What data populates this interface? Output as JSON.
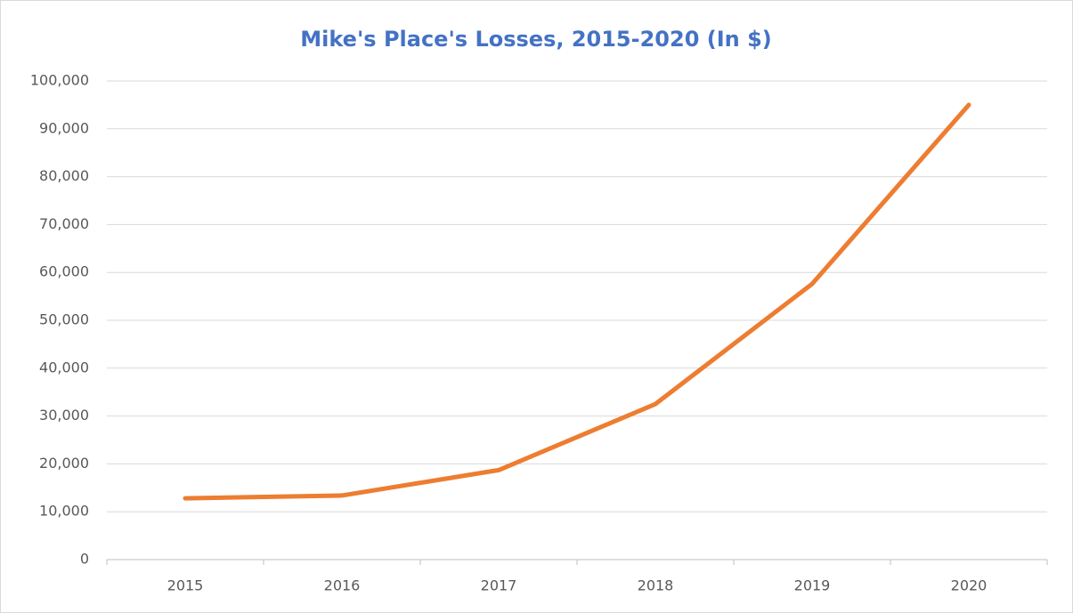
{
  "chart_data": {
    "type": "line",
    "title": "Mike's Place's Losses, 2015-2020 (In $)",
    "categories": [
      "2015",
      "2016",
      "2017",
      "2018",
      "2019",
      "2020"
    ],
    "series": [
      {
        "name": "Losses",
        "color": "#ed7d31",
        "values": [
          12800,
          13400,
          18700,
          32500,
          57600,
          95000
        ]
      }
    ],
    "ylim": [
      0,
      100000
    ],
    "yticks": [
      0,
      {
        "value": 10000,
        "label": "10,000"
      },
      {
        "value": 20000,
        "label": "20,000"
      },
      {
        "value": 30000,
        "label": "30,000"
      },
      {
        "value": 40000,
        "label": "40,000"
      },
      {
        "value": 50000,
        "label": "50,000"
      },
      {
        "value": 60000,
        "label": "60,000"
      },
      {
        "value": 70000,
        "label": "70,000"
      },
      {
        "value": 80000,
        "label": "80,000"
      },
      {
        "value": 90000,
        "label": "90,000"
      },
      {
        "value": 100000,
        "label": "100,000"
      }
    ],
    "grid": true
  }
}
